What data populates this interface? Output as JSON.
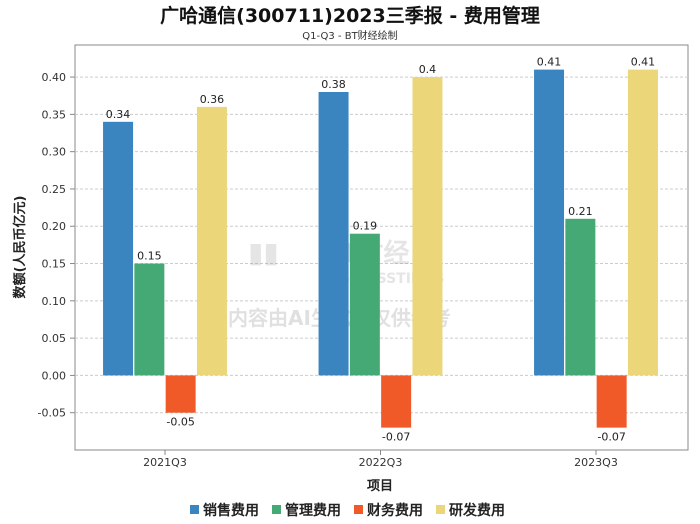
{
  "chart_data": {
    "type": "bar",
    "title": "广哈通信(300711)2023三季报 - 费用管理",
    "subtitle": "Q1-Q3 - BT财经绘制",
    "xlabel": "项目",
    "ylabel": "数额(人民币亿元)",
    "categories": [
      "2021Q3",
      "2022Q3",
      "2023Q3"
    ],
    "series": [
      {
        "name": "销售费用",
        "color": "#3a84c0",
        "values": [
          0.34,
          0.38,
          0.41
        ],
        "labels": [
          "0.34",
          "0.38",
          "0.41"
        ]
      },
      {
        "name": "管理费用",
        "color": "#45a975",
        "values": [
          0.15,
          0.19,
          0.21
        ],
        "labels": [
          "0.15",
          "0.19",
          "0.21"
        ]
      },
      {
        "name": "财务费用",
        "color": "#f05a28",
        "values": [
          -0.05,
          -0.07,
          -0.07
        ],
        "labels": [
          "-0.05",
          "-0.07",
          "-0.07"
        ]
      },
      {
        "name": "研发费用",
        "color": "#ecd67a",
        "values": [
          0.36,
          0.4,
          0.41
        ],
        "labels": [
          "0.36",
          "0.4",
          "0.41"
        ]
      }
    ],
    "ylim": [
      -0.1,
      0.443
    ],
    "yticks": [
      "-0.05",
      "0.00",
      "0.05",
      "0.10",
      "0.15",
      "0.20",
      "0.25",
      "0.30",
      "0.35",
      "0.40"
    ],
    "ytick_values": [
      -0.05,
      0,
      0.05,
      0.1,
      0.15,
      0.2,
      0.25,
      0.3,
      0.35,
      0.4
    ],
    "grid": true,
    "legend_position": "bottom"
  },
  "watermark": {
    "brand": "BT财经",
    "brand_en": "BUSINESSTIMES",
    "notice": "内容由AI生成，仅供参考"
  }
}
